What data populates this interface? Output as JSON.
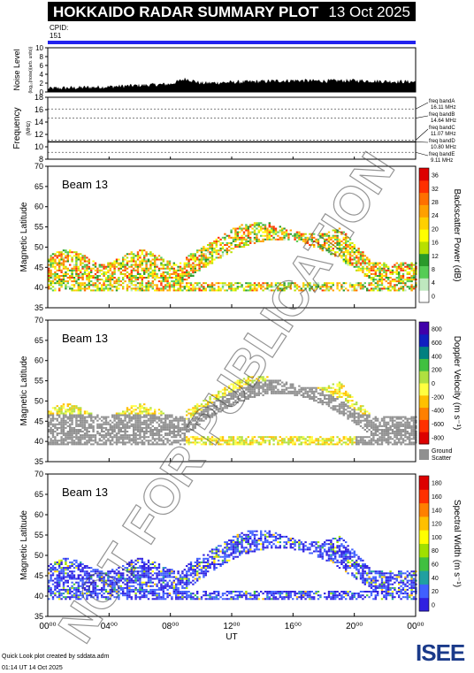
{
  "header": {
    "title": "HOKKAIDO RADAR SUMMARY PLOT",
    "date": "13 Oct 2025",
    "cpid_label": "CPID:",
    "cpid_value": "151"
  },
  "footer": {
    "credit": "Quick Look plot created by sddata.adm",
    "timestamp": "01:14 UT 14 Oct 2025",
    "logo_text": "ISEE"
  },
  "watermark": "NOT FOR PUBLICATION",
  "colors": {
    "cpid_bar": "#2222ee",
    "ground_scatter": "#909090",
    "frame": "#000000"
  },
  "chart_data": [
    {
      "type": "area",
      "id": "noise",
      "ylabel": "Noise Level",
      "ylabel_units": "(log₁₀(noise)(arb. units))",
      "ylim": [
        0,
        10
      ],
      "yticks": [
        "0",
        "2",
        "4",
        "6",
        "8",
        "10"
      ],
      "x": [
        0,
        2,
        4,
        6,
        8,
        9,
        10,
        12,
        14,
        16,
        18,
        20,
        22,
        24
      ],
      "values": [
        0.8,
        1.0,
        1.2,
        1.5,
        1.8,
        3.0,
        2.0,
        2.2,
        2.4,
        2.6,
        2.5,
        2.6,
        2.4,
        2.3
      ]
    },
    {
      "type": "line",
      "id": "frequency",
      "ylabel": "Frequency",
      "ylabel_units": "(MHz)",
      "ylim": [
        8,
        18
      ],
      "yticks": [
        "8",
        "10",
        "12",
        "14",
        "16",
        "18"
      ],
      "bands": [
        {
          "name": "freq bandA",
          "value": 16.11,
          "label": "16.11 MHz"
        },
        {
          "name": "freq bandB",
          "value": 14.64,
          "label": "14.64 MHz"
        },
        {
          "name": "freq bandC",
          "value": 11.07,
          "label": "11.07 MHz"
        },
        {
          "name": "freq bandD",
          "value": 10.8,
          "label": "10.80 MHz"
        },
        {
          "name": "freq bandE",
          "value": 9.11,
          "label": "9.11 MHz"
        }
      ],
      "operating_frequency": 10.8
    },
    {
      "type": "heatmap",
      "id": "power",
      "beam_label": "Beam 13",
      "ylabel": "Magnetic Latitude",
      "ylim": [
        35,
        70
      ],
      "yticks": [
        "35",
        "40",
        "45",
        "50",
        "55",
        "60",
        "65",
        "70"
      ],
      "colorbar_label": "Backscatter Power (dB)",
      "colorbar_ticks": [
        "0",
        "4",
        "8",
        "12",
        "16",
        "20",
        "24",
        "28",
        "32",
        "36"
      ],
      "colorbar_colors": [
        "#ffffff",
        "#bfe8bf",
        "#55cc55",
        "#2a9a2a",
        "#b8e000",
        "#ffff00",
        "#ffd000",
        "#ffa000",
        "#ff7000",
        "#ff3000",
        "#dd0000"
      ]
    },
    {
      "type": "heatmap",
      "id": "velocity",
      "beam_label": "Beam 13",
      "ylabel": "Magnetic Latitude",
      "ylim": [
        35,
        70
      ],
      "yticks": [
        "35",
        "40",
        "45",
        "50",
        "55",
        "60",
        "65",
        "70"
      ],
      "colorbar_label": "Doppler Velocity (m s⁻¹)",
      "colorbar_ticks": [
        "-800",
        "-600",
        "-400",
        "-200",
        "0",
        "200",
        "400",
        "600",
        "800"
      ],
      "colorbar_colors": [
        "#dd0000",
        "#ff3000",
        "#ff8000",
        "#ffc000",
        "#ffff40",
        "#b0e040",
        "#40c040",
        "#008080",
        "#1020c0",
        "#4000aa"
      ],
      "ground_scatter_label": "Ground Scatter"
    },
    {
      "type": "heatmap",
      "id": "width",
      "beam_label": "Beam 13",
      "ylabel": "Magnetic Latitude",
      "ylim": [
        35,
        70
      ],
      "yticks": [
        "35",
        "40",
        "45",
        "50",
        "55",
        "60",
        "65",
        "70"
      ],
      "xlabel": "UT",
      "xticks": [
        "00⁰⁰",
        "04⁰⁰",
        "08⁰⁰",
        "12⁰⁰",
        "16⁰⁰",
        "20⁰⁰",
        "00⁰⁰"
      ],
      "colorbar_label": "Spectral Width (m s⁻¹)",
      "colorbar_ticks": [
        "0",
        "20",
        "40",
        "60",
        "80",
        "100",
        "120",
        "140",
        "160",
        "180"
      ],
      "colorbar_colors": [
        "#3020e0",
        "#4060ff",
        "#20a0a0",
        "#40c040",
        "#a0e000",
        "#ffff00",
        "#ffc000",
        "#ff8000",
        "#ff3000",
        "#dd0000"
      ]
    }
  ]
}
